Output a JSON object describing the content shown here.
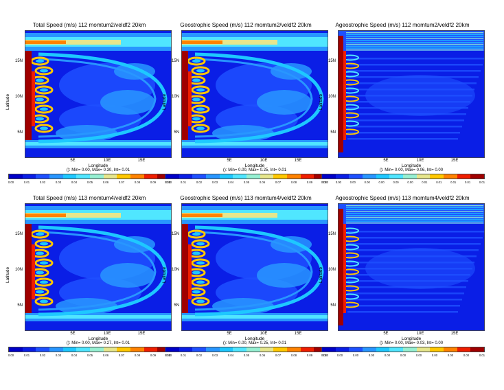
{
  "colors": [
    "#0000c8",
    "#0a1ee6",
    "#1e50ff",
    "#2896ff",
    "#1ec8ff",
    "#50e6ff",
    "#96f0d2",
    "#e6e68c",
    "#ffc800",
    "#ff8200",
    "#f01e00",
    "#a00000"
  ],
  "chart_data": [
    {
      "type": "heatmap",
      "kind": "total",
      "title": "Total Speed (m/s) 112 momtum2/veldf2 20km",
      "xlabel": "Longitude",
      "ylabel": "Latitude",
      "xticks": [
        "5E",
        "10E",
        "15E"
      ],
      "yticks": [
        "15N",
        "10N",
        "5N"
      ],
      "stats": "(): Min= 0.00, Max= 0.30, Int= 0.01",
      "colorbar_ticks": [
        "0.00",
        "0.01",
        "0.02",
        "0.03",
        "0.04",
        "0.05",
        "0.06",
        "0.07",
        "0.08",
        "0.09",
        "0.10"
      ]
    },
    {
      "type": "heatmap",
      "kind": "geo",
      "title": "Geostrophic Speed (m/s) 112 momtum2/veldf2 20km",
      "xlabel": "Longitude",
      "ylabel": "Latitude",
      "xticks": [
        "5E",
        "10E",
        "15E"
      ],
      "yticks": [
        "15N",
        "10N",
        "5N"
      ],
      "stats": "(): Min= 0.00, Max= 0.25, Int= 0.01",
      "colorbar_ticks": [
        "0.00",
        "0.01",
        "0.02",
        "0.03",
        "0.04",
        "0.05",
        "0.06",
        "0.07",
        "0.08",
        "0.09",
        "0.10"
      ]
    },
    {
      "type": "heatmap",
      "kind": "ageo",
      "title": "Ageostrophic Speed (m/s) 112 momtum2/veldf2 20km",
      "xlabel": "Longitude",
      "ylabel": "Latitude",
      "xticks": [
        "5E",
        "10E",
        "15E"
      ],
      "yticks": [
        "15N",
        "10N",
        "5N"
      ],
      "stats": "(): Min= 0.00, Max= 0.06, Int= 0.00",
      "colorbar_ticks": [
        "0.00",
        "0.00",
        "0.00",
        "0.00",
        "0.00",
        "0.00",
        "0.00",
        "0.01",
        "0.01",
        "0.01",
        "0.01",
        "0.01"
      ]
    },
    {
      "type": "heatmap",
      "kind": "total",
      "title": "Total Speed (m/s) 113 momtum4/veldf2 20km",
      "xlabel": "Longitude",
      "ylabel": "Latitude",
      "xticks": [
        "5E",
        "10E",
        "15E"
      ],
      "yticks": [
        "15N",
        "10N",
        "5N"
      ],
      "stats": "(): Min= 0.00, Max= 0.27, Int= 0.01",
      "colorbar_ticks": [
        "0.00",
        "0.01",
        "0.02",
        "0.03",
        "0.04",
        "0.05",
        "0.06",
        "0.07",
        "0.08",
        "0.09",
        "0.10"
      ]
    },
    {
      "type": "heatmap",
      "kind": "geo",
      "title": "Geostrophic Speed (m/s) 113 momtum4/veldf2 20km",
      "xlabel": "Longitude",
      "ylabel": "Latitude",
      "xticks": [
        "5E",
        "10E",
        "15E"
      ],
      "yticks": [
        "15N",
        "10N",
        "5N"
      ],
      "stats": "(): Min= 0.00, Max= 0.25, Int= 0.01",
      "colorbar_ticks": [
        "0.00",
        "0.01",
        "0.02",
        "0.03",
        "0.04",
        "0.05",
        "0.06",
        "0.07",
        "0.08",
        "0.09",
        "0.10"
      ]
    },
    {
      "type": "heatmap",
      "kind": "ageo",
      "title": "Ageostrophic Speed (m/s) 113 momtum4/veldf2 20km",
      "xlabel": "Longitude",
      "ylabel": "Latitude",
      "xticks": [
        "5E",
        "10E",
        "15E"
      ],
      "yticks": [
        "15N",
        "10N",
        "5N"
      ],
      "stats": "(): Min= 0.00, Max= 0.03, Int= 0.00",
      "colorbar_ticks": [
        "0.00",
        "0.00",
        "0.00",
        "0.00",
        "0.00",
        "0.00",
        "0.00",
        "0.00",
        "0.00",
        "0.00",
        "0.01"
      ]
    }
  ]
}
